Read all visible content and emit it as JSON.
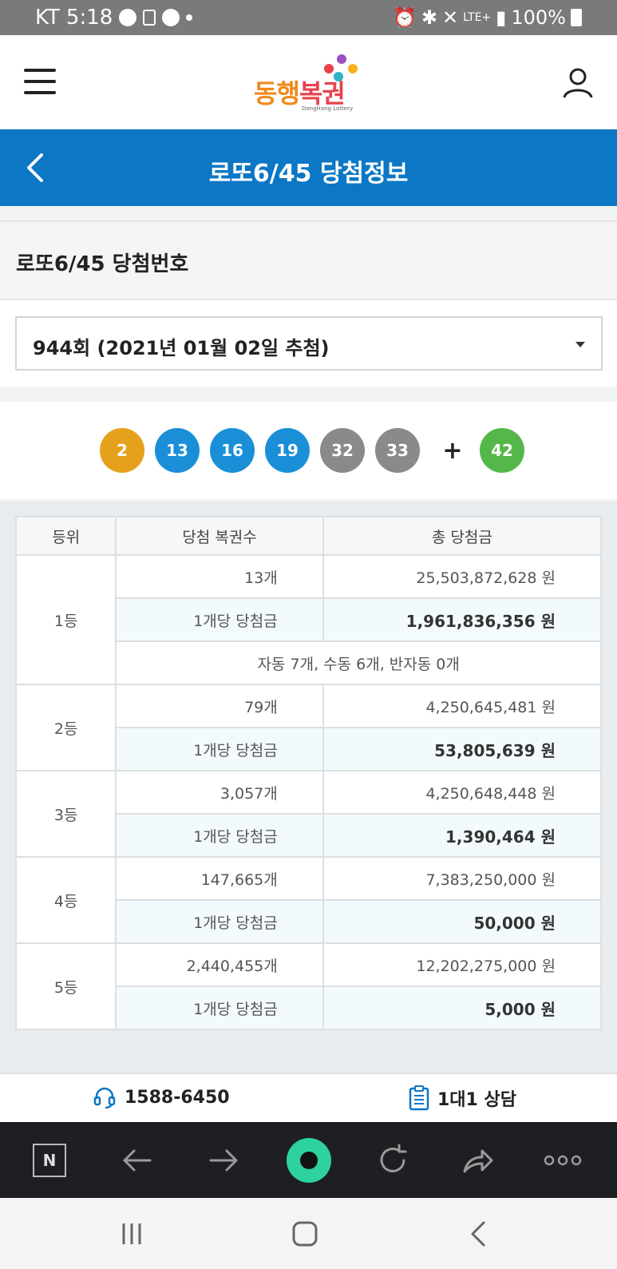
{
  "status_bar": {
    "carrier": "KT",
    "time": "5:18",
    "network": "LTE+",
    "battery": "100%"
  },
  "header": {
    "logo_text_part1": "동행",
    "logo_text_part2": "복권",
    "logo_sub": "DongHang Lottery"
  },
  "title_bar": {
    "title": "로또6/45 당첨정보"
  },
  "section": {
    "title": "로또6/45 당첨번호"
  },
  "draw_select": {
    "selected": "944회 (2021년 01월 02일 추첨)"
  },
  "winning_numbers": {
    "numbers": [
      "2",
      "13",
      "16",
      "19",
      "32",
      "33"
    ],
    "plus": "+",
    "bonus": "42",
    "colors": [
      "#e6a11c",
      "#1a8fd8",
      "#1a8fd8",
      "#1a8fd8",
      "#8a8a8a",
      "#8a8a8a"
    ],
    "bonus_color": "#55b74a"
  },
  "prize_table": {
    "headers": [
      "등위",
      "당첨 복권수",
      "총 당첨금"
    ],
    "rank1": {
      "rank": "1등",
      "count": "13개",
      "total": "25,503,872,628 원",
      "per_label": "1개당 당첨금",
      "per_amount": "1,961,836,356 원",
      "note": "자동 7개, 수동 6개, 반자동 0개"
    },
    "rank2": {
      "rank": "2등",
      "count": "79개",
      "total": "4,250,645,481 원",
      "per_label": "1개당 당첨금",
      "per_amount": "53,805,639 원"
    },
    "rank3": {
      "rank": "3등",
      "count": "3,057개",
      "total": "4,250,648,448 원",
      "per_label": "1개당 당첨금",
      "per_amount": "1,390,464 원"
    },
    "rank4": {
      "rank": "4등",
      "count": "147,665개",
      "total": "7,383,250,000 원",
      "per_label": "1개당 당첨금",
      "per_amount": "50,000 원"
    },
    "rank5": {
      "rank": "5등",
      "count": "2,440,455개",
      "total": "12,202,275,000 원",
      "per_label": "1개당 당첨금",
      "per_amount": "5,000 원"
    }
  },
  "footer": {
    "phone": "1588-6450",
    "consult": "1대1 상담"
  },
  "browser_bar": {
    "n_label": "N"
  },
  "colors": {
    "primary_blue": "#0b77c5",
    "browser_bg": "#1e1f22",
    "green_button": "#2ed1a0"
  }
}
